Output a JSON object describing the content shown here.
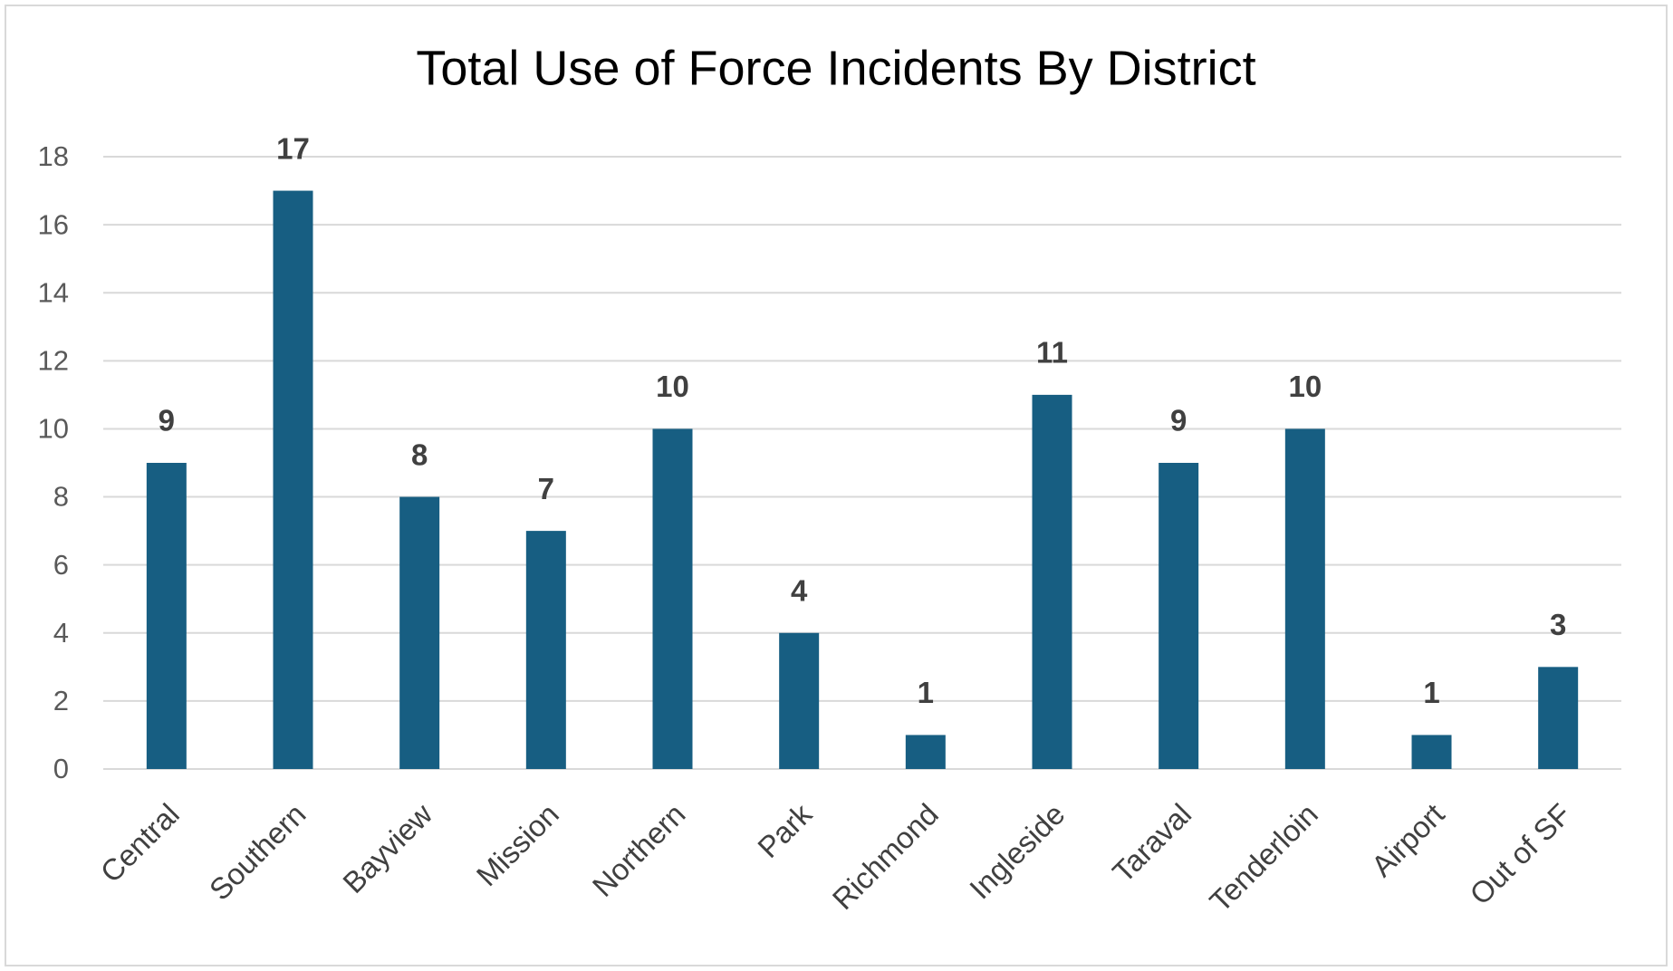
{
  "chart_data": {
    "type": "bar",
    "title": "Total Use of Force Incidents By District",
    "categories": [
      "Central",
      "Southern",
      "Bayview",
      "Mission",
      "Northern",
      "Park",
      "Richmond",
      "Ingleside",
      "Taraval",
      "Tenderloin",
      "Airport",
      "Out of SF"
    ],
    "values": [
      9,
      17,
      8,
      7,
      10,
      4,
      1,
      11,
      9,
      10,
      1,
      3
    ],
    "color": "#175e82",
    "ylim": [
      0,
      18
    ],
    "yticks": [
      0,
      2,
      4,
      6,
      8,
      10,
      12,
      14,
      16,
      18
    ],
    "grid": true
  }
}
